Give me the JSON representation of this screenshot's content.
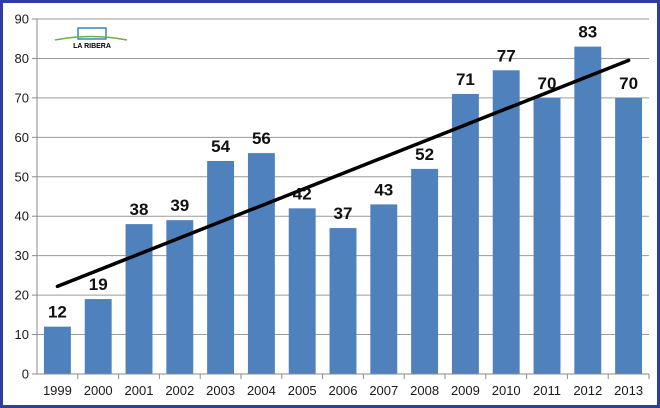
{
  "logo": {
    "text": "LA RIBERA",
    "color": "#3a86b8"
  },
  "chart_data": {
    "type": "bar",
    "categories": [
      "1999",
      "2000",
      "2001",
      "2002",
      "2003",
      "2004",
      "2005",
      "2006",
      "2007",
      "2008",
      "2009",
      "2010",
      "2011",
      "2012",
      "2013"
    ],
    "values": [
      12,
      19,
      38,
      39,
      54,
      56,
      42,
      37,
      43,
      52,
      71,
      77,
      70,
      83,
      70
    ],
    "data_labels": [
      "12",
      "19",
      "38",
      "39",
      "54",
      "56",
      "42",
      "37",
      "43",
      "52",
      "71",
      "77",
      "70",
      "83",
      "70"
    ],
    "title": "",
    "xlabel": "",
    "ylabel": "",
    "ylim": [
      0,
      90
    ],
    "yticks": [
      0,
      10,
      20,
      30,
      40,
      50,
      60,
      70,
      80,
      90
    ],
    "grid": true,
    "legend": "none",
    "trendline": {
      "type": "linear",
      "color": "#000000"
    },
    "colors": {
      "bar": "#4f81bd",
      "gridline": "#9a9a9a",
      "axis": "#8a8a8a",
      "frame": "#2e3ea0"
    }
  }
}
